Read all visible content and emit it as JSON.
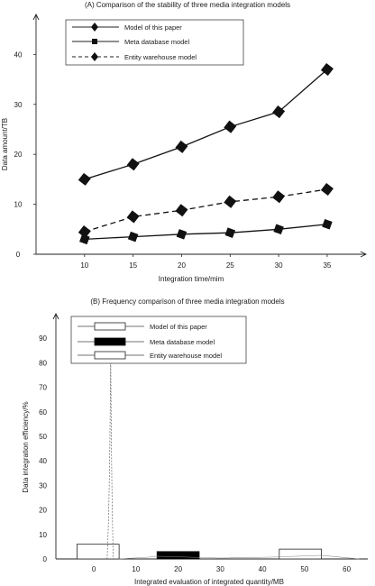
{
  "chart_data": [
    {
      "type": "line",
      "title": "(A) Comparison of the stability of three media integration models",
      "xlabel": "Integration time/mim",
      "ylabel": "Data amount/TB",
      "x": [
        10,
        15,
        20,
        25,
        30,
        35
      ],
      "x_ticks": [
        "10",
        "15",
        "20",
        "25",
        "30",
        "35"
      ],
      "y_ticks": [
        "0",
        "10",
        "20",
        "30",
        "40"
      ],
      "xlim": [
        5,
        39
      ],
      "ylim": [
        0,
        48
      ],
      "legend_position": "top-left",
      "series": [
        {
          "name": "Model of this paper",
          "values": [
            15,
            18,
            21.5,
            25.5,
            28.5,
            37
          ],
          "line": "solid",
          "marker": "diamond",
          "color": "#111111"
        },
        {
          "name": "Meta database model",
          "values": [
            3,
            3.5,
            4,
            4.3,
            5,
            6
          ],
          "line": "solid",
          "marker": "square",
          "color": "#111111"
        },
        {
          "name": "Entity warehouse model",
          "values": [
            4.5,
            7.5,
            8.8,
            10.5,
            11.5,
            13
          ],
          "line": "dashed",
          "marker": "diamond",
          "color": "#111111"
        }
      ]
    },
    {
      "type": "bar",
      "title": "(B) Frequency comparison of three media integration models",
      "xlabel": "Integrated evaluation of integrated quantity/MB",
      "ylabel": "Data integration efficiency/%",
      "x_ticks": [
        "0",
        "10",
        "20",
        "30",
        "40",
        "50",
        "60"
      ],
      "y_ticks": [
        "0",
        "10",
        "20",
        "30",
        "40",
        "50",
        "60",
        "70",
        "80",
        "90"
      ],
      "xlim": [
        -9,
        65
      ],
      "ylim": [
        0,
        100
      ],
      "legend_position": "top-center",
      "series": [
        {
          "name": "Model of this paper",
          "x_range": [
            -4,
            6
          ],
          "values": [
            6
          ],
          "fill": "#ffffff",
          "stroke": "#222222",
          "spike": {
            "x": 4,
            "peak": 87
          }
        },
        {
          "name": "Meta database model",
          "x_range": [
            15,
            25
          ],
          "values": [
            3
          ],
          "fill": "#000000",
          "stroke": "#000000"
        },
        {
          "name": "Entity warehouse model",
          "x_range": [
            44,
            54
          ],
          "values": [
            4
          ],
          "fill": "#ffffff",
          "stroke": "#222222"
        }
      ]
    }
  ]
}
